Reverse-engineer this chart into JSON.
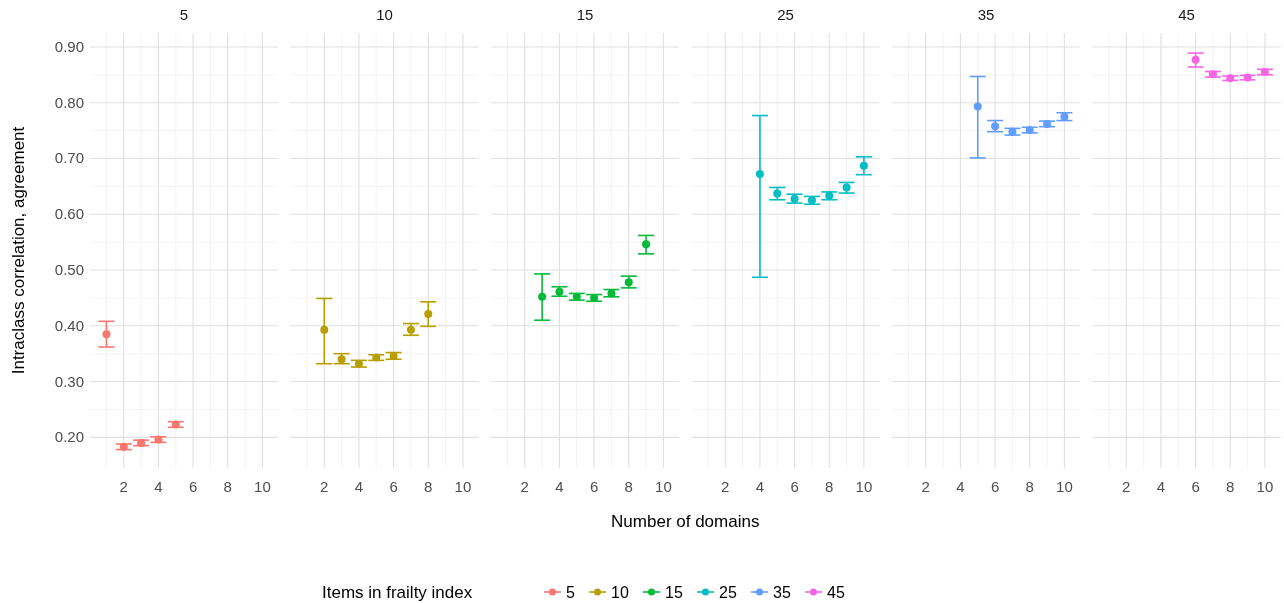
{
  "chart_data": [
    {
      "type": "scatter",
      "title": "5",
      "ylabel": "Intraclass correlation, agreement",
      "legend_title": "Items in frailty index",
      "legend": "bottom",
      "grid": true,
      "marker": "circle",
      "xlim": [
        0.05,
        10.9
      ],
      "xticks": [
        2,
        4,
        6,
        8,
        10
      ],
      "ylim": [
        0.145,
        0.925
      ],
      "yticks": [
        {
          "value": 0.2,
          "label": "0.20"
        },
        {
          "value": 0.3,
          "label": "0.30"
        },
        {
          "value": 0.4,
          "label": "0.40"
        },
        {
          "value": 0.5,
          "label": "0.50"
        },
        {
          "value": 0.6,
          "label": "0.60"
        },
        {
          "value": 0.7,
          "label": "0.70"
        },
        {
          "value": 0.8,
          "label": "0.80"
        },
        {
          "value": 0.9,
          "label": "0.90"
        }
      ],
      "series": [
        {
          "name": "5",
          "color": "#f8766d",
          "x": [
            1,
            2,
            3,
            4,
            5
          ],
          "values": [
            0.385,
            0.183,
            0.19,
            0.196,
            0.223
          ],
          "errors": [
            [
              0.362,
              0.408
            ],
            [
              0.178,
              0.188
            ],
            [
              0.185,
              0.195
            ],
            [
              0.191,
              0.201
            ],
            [
              0.218,
              0.228
            ]
          ]
        }
      ]
    },
    {
      "type": "scatter",
      "title": "10",
      "legend": "bottom",
      "grid": true,
      "marker": "circle",
      "tick_labels": "x",
      "xlim": [
        0.05,
        10.9
      ],
      "xticks": [
        2,
        4,
        6,
        8,
        10
      ],
      "ylim": [
        0.145,
        0.925
      ],
      "yticks": [
        0.2,
        0.3,
        0.4,
        0.5,
        0.6,
        0.7,
        0.8,
        0.9
      ],
      "series": [
        {
          "name": "10",
          "color": "#b79f00",
          "x": [
            2,
            3,
            4,
            5,
            6,
            7,
            8
          ],
          "values": [
            0.393,
            0.34,
            0.332,
            0.343,
            0.346,
            0.393,
            0.421
          ],
          "errors": [
            [
              0.332,
              0.449
            ],
            [
              0.332,
              0.35
            ],
            [
              0.326,
              0.338
            ],
            [
              0.338,
              0.348
            ],
            [
              0.34,
              0.352
            ],
            [
              0.383,
              0.404
            ],
            [
              0.399,
              0.443
            ]
          ]
        }
      ]
    },
    {
      "type": "scatter",
      "title": "15",
      "legend": "bottom",
      "grid": true,
      "marker": "circle",
      "tick_labels": "x",
      "xlim": [
        0.05,
        10.9
      ],
      "xticks": [
        2,
        4,
        6,
        8,
        10
      ],
      "ylim": [
        0.145,
        0.925
      ],
      "yticks": [
        0.2,
        0.3,
        0.4,
        0.5,
        0.6,
        0.7,
        0.8,
        0.9
      ],
      "series": [
        {
          "name": "15",
          "color": "#00ba38",
          "x": [
            3,
            4,
            5,
            6,
            7,
            8,
            9
          ],
          "values": [
            0.452,
            0.461,
            0.452,
            0.45,
            0.458,
            0.478,
            0.546
          ],
          "errors": [
            [
              0.41,
              0.493
            ],
            [
              0.453,
              0.47
            ],
            [
              0.446,
              0.458
            ],
            [
              0.444,
              0.456
            ],
            [
              0.452,
              0.465
            ],
            [
              0.468,
              0.489
            ],
            [
              0.529,
              0.562
            ]
          ]
        }
      ]
    },
    {
      "type": "scatter",
      "title": "25",
      "xlabel": "Number of domains",
      "legend": "bottom",
      "grid": true,
      "marker": "circle",
      "tick_labels": "x",
      "xlim": [
        0.05,
        10.9
      ],
      "xticks": [
        2,
        4,
        6,
        8,
        10
      ],
      "ylim": [
        0.145,
        0.925
      ],
      "yticks": [
        0.2,
        0.3,
        0.4,
        0.5,
        0.6,
        0.7,
        0.8,
        0.9
      ],
      "series": [
        {
          "name": "25",
          "color": "#00bfc4",
          "x": [
            4,
            5,
            6,
            7,
            8,
            9,
            10
          ],
          "values": [
            0.672,
            0.637,
            0.628,
            0.625,
            0.633,
            0.648,
            0.687
          ],
          "errors": [
            [
              0.487,
              0.777
            ],
            [
              0.626,
              0.648
            ],
            [
              0.62,
              0.636
            ],
            [
              0.618,
              0.632
            ],
            [
              0.626,
              0.64
            ],
            [
              0.638,
              0.657
            ],
            [
              0.671,
              0.703
            ]
          ]
        }
      ]
    },
    {
      "type": "scatter",
      "title": "35",
      "legend": "bottom",
      "grid": true,
      "marker": "circle",
      "tick_labels": "x",
      "xlim": [
        0.05,
        10.9
      ],
      "xticks": [
        2,
        4,
        6,
        8,
        10
      ],
      "ylim": [
        0.145,
        0.925
      ],
      "yticks": [
        0.2,
        0.3,
        0.4,
        0.5,
        0.6,
        0.7,
        0.8,
        0.9
      ],
      "series": [
        {
          "name": "35",
          "color": "#619cff",
          "x": [
            5,
            6,
            7,
            8,
            9,
            10
          ],
          "values": [
            0.793,
            0.758,
            0.748,
            0.751,
            0.762,
            0.775
          ],
          "errors": [
            [
              0.701,
              0.847
            ],
            [
              0.748,
              0.768
            ],
            [
              0.742,
              0.754
            ],
            [
              0.746,
              0.756
            ],
            [
              0.757,
              0.767
            ],
            [
              0.768,
              0.782
            ]
          ]
        }
      ]
    },
    {
      "type": "scatter",
      "title": "45",
      "legend": "bottom",
      "grid": true,
      "marker": "circle",
      "tick_labels": "x",
      "xlim": [
        0.05,
        10.9
      ],
      "xticks": [
        2,
        4,
        6,
        8,
        10
      ],
      "ylim": [
        0.145,
        0.925
      ],
      "yticks": [
        0.2,
        0.3,
        0.4,
        0.5,
        0.6,
        0.7,
        0.8,
        0.9
      ],
      "series": [
        {
          "name": "45",
          "color": "#f564e3",
          "x": [
            6,
            7,
            8,
            9,
            10
          ],
          "values": [
            0.877,
            0.851,
            0.844,
            0.845,
            0.855
          ],
          "errors": [
            [
              0.864,
              0.889
            ],
            [
              0.846,
              0.856
            ],
            [
              0.84,
              0.848
            ],
            [
              0.841,
              0.849
            ],
            [
              0.85,
              0.86
            ]
          ]
        }
      ]
    }
  ]
}
